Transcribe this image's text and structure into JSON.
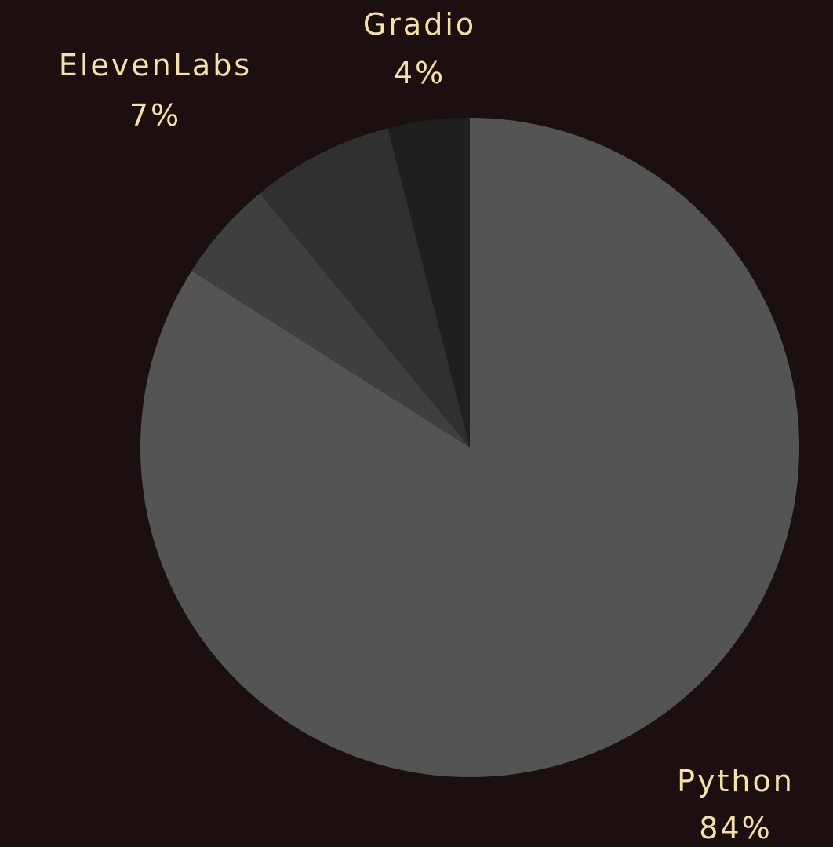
{
  "chart_data": {
    "type": "pie",
    "title": "",
    "start_angle_deg": 0,
    "direction": "clockwise",
    "label_color": "#f4e2a4",
    "background_color": "#1c0f0f",
    "slices": [
      {
        "label": "Python",
        "value": 84,
        "value_label": "84%",
        "color": "#545454"
      },
      {
        "label": "",
        "value": 5,
        "value_label": "",
        "color": "#3f3f3f"
      },
      {
        "label": "ElevenLabs",
        "value": 7,
        "value_label": "7%",
        "color": "#303030"
      },
      {
        "label": "Gradio",
        "value": 4,
        "value_label": "4%",
        "color": "#1f1f1f"
      }
    ]
  }
}
